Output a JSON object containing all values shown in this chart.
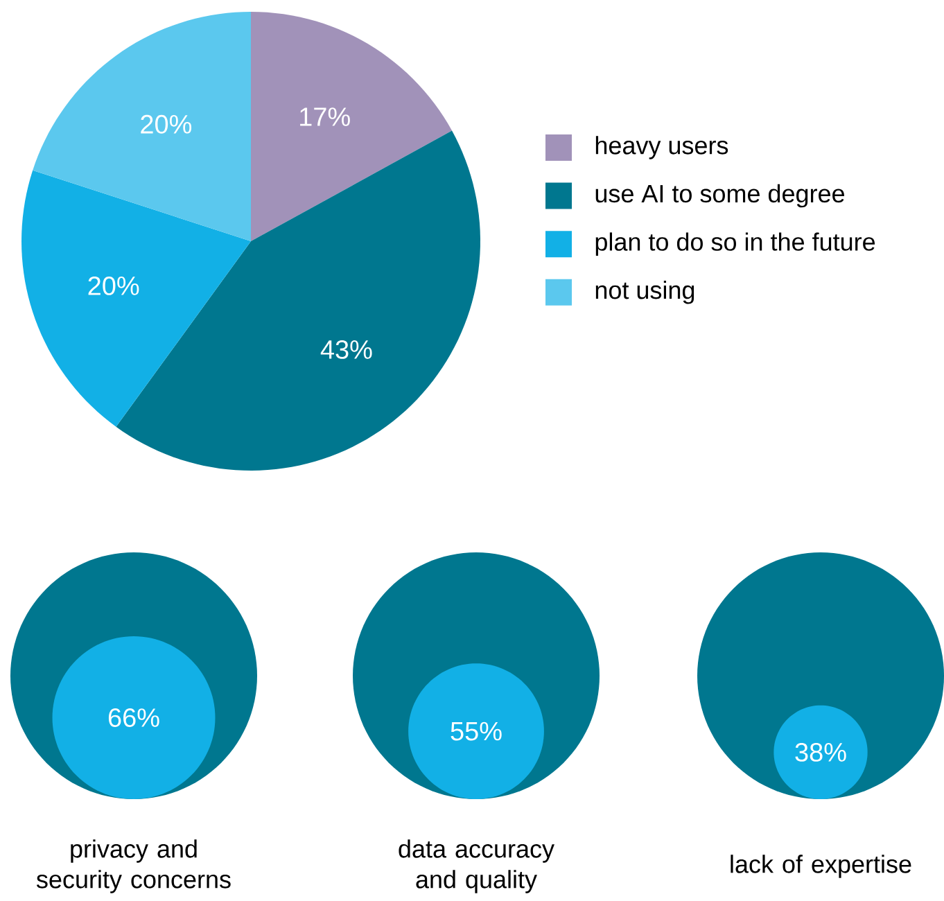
{
  "chart_data": [
    {
      "type": "pie",
      "categories": [
        "heavy users",
        "use AI to some degree",
        "plan to do so in the future",
        "not using"
      ],
      "values": [
        17,
        43,
        20,
        20
      ],
      "value_labels": [
        "17%",
        "43%",
        "20%",
        "20%"
      ],
      "colors": [
        "#a192b9",
        "#00778f",
        "#12b0e6",
        "#5bc8ee"
      ],
      "legend": "right"
    },
    {
      "type": "other",
      "categories": [
        "privacy and security concerns",
        "data accuracy and quality",
        "lack of expertise"
      ],
      "color": "#00778f",
      "series": [
        {
          "color": "#12b0e6",
          "values": [
            66,
            55,
            38
          ],
          "value_labels": [
            "66%",
            "55%",
            "38%"
          ]
        }
      ]
    }
  ]
}
